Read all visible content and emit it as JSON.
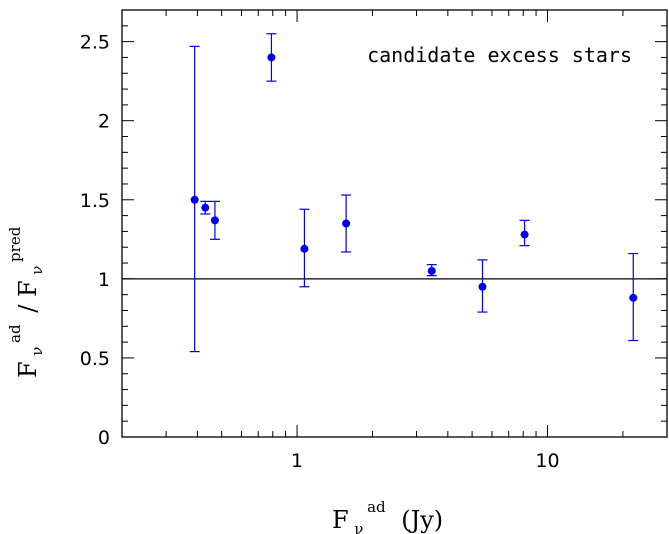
{
  "chart_data": {
    "type": "scatter",
    "annotation": "candidate excess stars",
    "x_scale": "log",
    "xlim": [
      0.2,
      30
    ],
    "ylim": [
      0,
      2.7
    ],
    "grid": false,
    "x_ticks": [
      {
        "value": 1,
        "label": "1"
      },
      {
        "value": 10,
        "label": "10"
      }
    ],
    "y_ticks": [
      {
        "value": 0,
        "label": "0"
      },
      {
        "value": 0.5,
        "label": "0.5"
      },
      {
        "value": 1,
        "label": "1"
      },
      {
        "value": 1.5,
        "label": "1.5"
      },
      {
        "value": 2,
        "label": "2"
      },
      {
        "value": 2.5,
        "label": "2.5"
      }
    ],
    "xlabel": {
      "base": "F",
      "sub": "ν",
      "sup": "ad",
      "unit": "(Jy)"
    },
    "ylabel": {
      "num_base": "F",
      "num_sub": "ν",
      "num_sup": "ad",
      "slash": "/",
      "den_base": "F",
      "den_sub": "ν",
      "den_sup": "pred"
    },
    "reference_line": {
      "y": 1
    },
    "points": [
      {
        "x": 0.39,
        "y": 1.5,
        "ylow": 0.54,
        "yhigh": 2.47
      },
      {
        "x": 0.43,
        "y": 1.45,
        "ylow": 1.41,
        "yhigh": 1.49
      },
      {
        "x": 0.47,
        "y": 1.37,
        "ylow": 1.25,
        "yhigh": 1.49
      },
      {
        "x": 0.79,
        "y": 2.4,
        "ylow": 2.25,
        "yhigh": 2.55
      },
      {
        "x": 1.07,
        "y": 1.19,
        "ylow": 0.95,
        "yhigh": 1.44
      },
      {
        "x": 1.57,
        "y": 1.35,
        "ylow": 1.17,
        "yhigh": 1.53
      },
      {
        "x": 3.45,
        "y": 1.05,
        "ylow": 1.02,
        "yhigh": 1.09
      },
      {
        "x": 5.5,
        "y": 0.95,
        "ylow": 0.79,
        "yhigh": 1.12
      },
      {
        "x": 8.1,
        "y": 1.28,
        "ylow": 1.21,
        "yhigh": 1.37
      },
      {
        "x": 22.0,
        "y": 0.88,
        "ylow": 0.61,
        "yhigh": 1.16
      }
    ],
    "colors": {
      "points": "#0000ee",
      "axes": "#000000"
    }
  }
}
